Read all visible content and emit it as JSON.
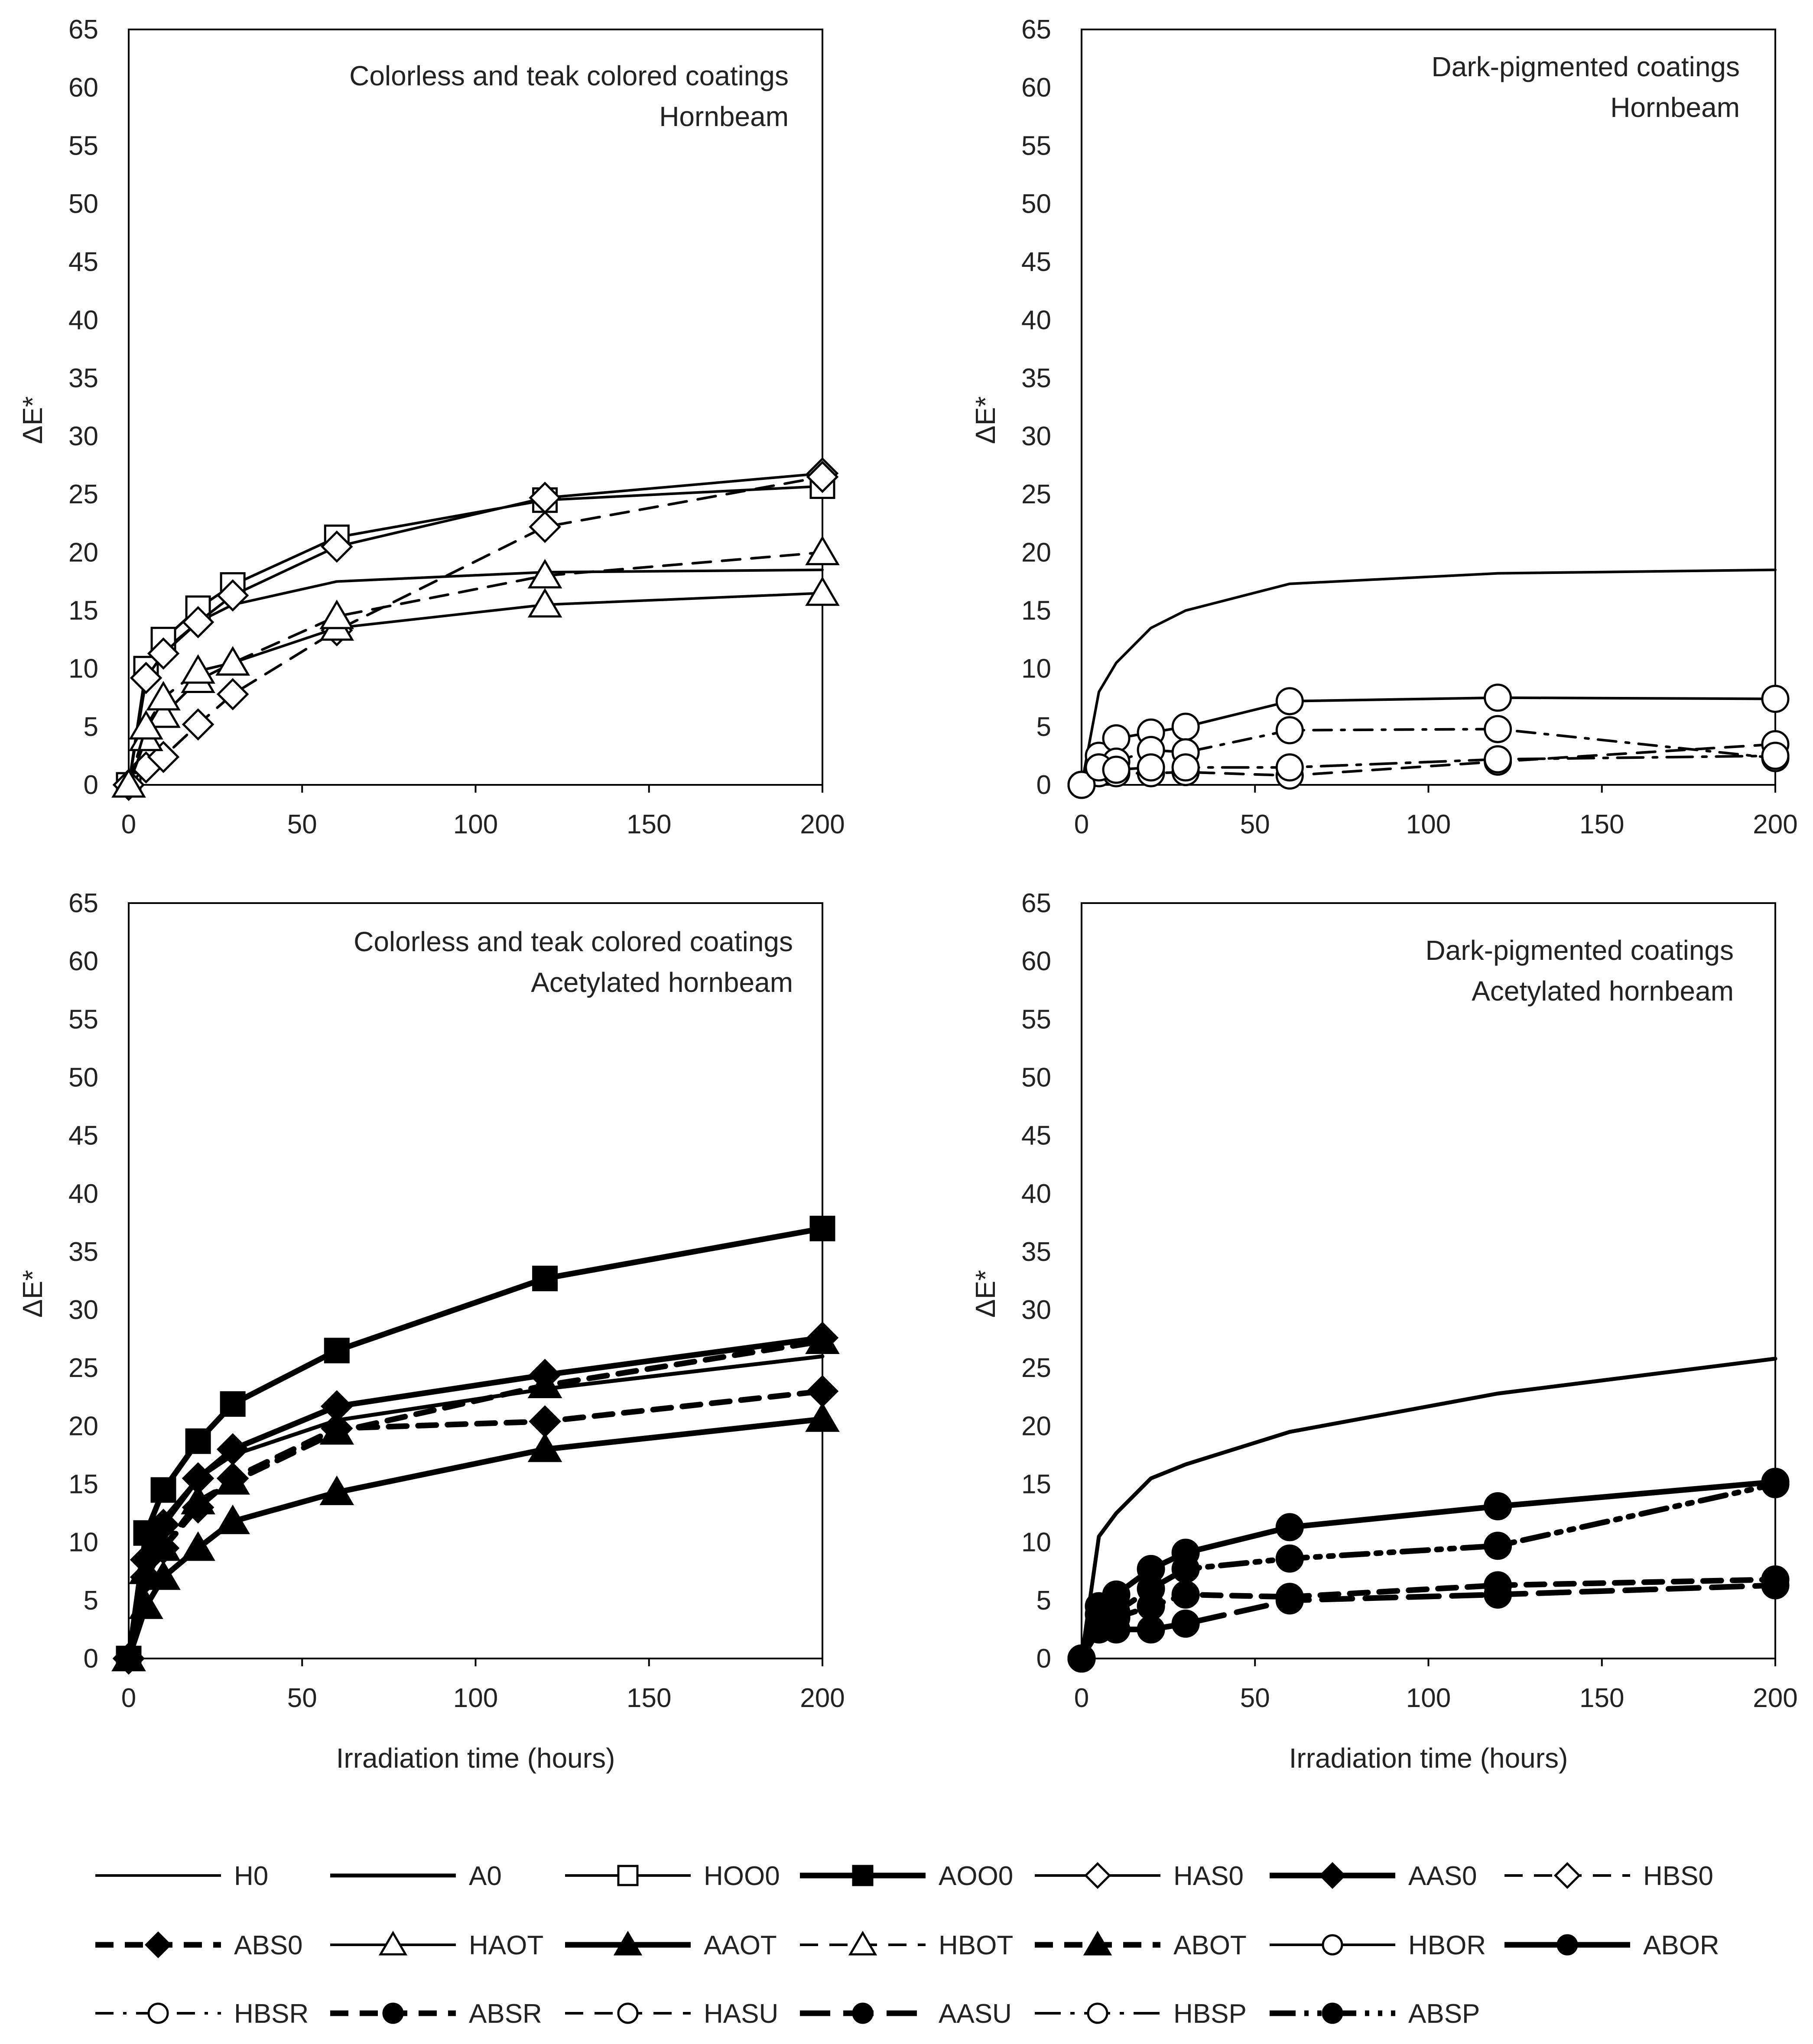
{
  "figure": {
    "legend": [
      {
        "label": "H0"
      },
      {
        "label": "A0"
      },
      {
        "label": "HOO0"
      },
      {
        "label": "AOO0"
      },
      {
        "label": "HAS0"
      },
      {
        "label": "AAS0"
      },
      {
        "label": "HBS0"
      },
      {
        "label": "ABS0"
      },
      {
        "label": "HAOT"
      },
      {
        "label": "AAOT"
      },
      {
        "label": "HBOT"
      },
      {
        "label": "ABOT"
      },
      {
        "label": "HBOR"
      },
      {
        "label": "ABOR"
      },
      {
        "label": "HBSR"
      },
      {
        "label": "ABSR"
      },
      {
        "label": "HASU"
      },
      {
        "label": "AASU"
      },
      {
        "label": "HBSP"
      },
      {
        "label": "ABSP"
      }
    ],
    "colors": {
      "line": "#000000",
      "open_fill": "#ffffff",
      "frame": "#000000"
    }
  },
  "chart_data": [
    {
      "type": "line",
      "title": "Colorless and teak colored coatings",
      "subtitle": "Hornbeam",
      "xlabel": "",
      "ylabel": "ΔE*",
      "xlim": [
        0,
        200
      ],
      "ylim": [
        0,
        65
      ],
      "xticks": [
        "0",
        "50",
        "100",
        "150",
        "200"
      ],
      "yticks": [
        "0",
        "5",
        "10",
        "15",
        "20",
        "25",
        "30",
        "35",
        "40",
        "45",
        "50",
        "55",
        "60",
        "65"
      ],
      "series": [
        {
          "name": "H0",
          "marker": "none",
          "dash": "solid",
          "width": "thin",
          "x": [
            0,
            5,
            10,
            20,
            30,
            60,
            120,
            200
          ],
          "y": [
            0,
            9,
            11.5,
            14,
            15.5,
            17.5,
            18.3,
            18.5
          ]
        },
        {
          "name": "HOO0",
          "marker": "square-open",
          "dash": "solid",
          "width": "thin",
          "x": [
            0,
            5,
            10,
            20,
            30,
            60,
            120,
            200
          ],
          "y": [
            0,
            10,
            12.5,
            15.2,
            17.2,
            21.3,
            24.5,
            25.7
          ]
        },
        {
          "name": "HAS0",
          "marker": "diamond-open",
          "dash": "solid",
          "width": "thin",
          "x": [
            0,
            5,
            10,
            20,
            30,
            60,
            120,
            200
          ],
          "y": [
            0,
            9.2,
            11.3,
            14,
            16.3,
            20.5,
            24.7,
            26.8
          ]
        },
        {
          "name": "HBS0",
          "marker": "diamond-open",
          "dash": "dashed",
          "width": "thin",
          "x": [
            0,
            5,
            10,
            20,
            30,
            60,
            120,
            200
          ],
          "y": [
            0,
            1.5,
            2.4,
            5.2,
            7.8,
            13.3,
            22.2,
            26.5
          ]
        },
        {
          "name": "HAOT",
          "marker": "triangle-open",
          "dash": "solid",
          "width": "thin",
          "x": [
            0,
            5,
            10,
            20,
            30,
            60,
            120,
            200
          ],
          "y": [
            0,
            4,
            6,
            9,
            10.5,
            13.5,
            15.5,
            16.5
          ]
        },
        {
          "name": "HBOT",
          "marker": "triangle-open",
          "dash": "dashed",
          "width": "thin",
          "x": [
            0,
            5,
            10,
            20,
            30,
            60,
            120,
            200
          ],
          "y": [
            0,
            5,
            7.5,
            9.8,
            10.5,
            14.5,
            18,
            20
          ]
        }
      ]
    },
    {
      "type": "line",
      "title": "Dark-pigmented coatings",
      "subtitle": "Hornbeam",
      "xlabel": "",
      "ylabel": "ΔE*",
      "xlim": [
        0,
        200
      ],
      "ylim": [
        0,
        65
      ],
      "xticks": [
        "0",
        "50",
        "100",
        "150",
        "200"
      ],
      "yticks": [
        "0",
        "5",
        "10",
        "15",
        "20",
        "25",
        "30",
        "35",
        "40",
        "45",
        "50",
        "55",
        "60",
        "65"
      ],
      "series": [
        {
          "name": "H0",
          "marker": "none",
          "dash": "solid",
          "width": "thin",
          "x": [
            0,
            5,
            10,
            20,
            30,
            60,
            120,
            200
          ],
          "y": [
            0,
            8,
            10.5,
            13.5,
            15,
            17.3,
            18.2,
            18.5
          ]
        },
        {
          "name": "HBOR",
          "marker": "circle-open",
          "dash": "solid",
          "width": "thin",
          "x": [
            0,
            5,
            10,
            20,
            30,
            60,
            120,
            200
          ],
          "y": [
            0,
            2.5,
            4,
            4.5,
            5,
            7.2,
            7.5,
            7.4
          ]
        },
        {
          "name": "HBSR",
          "marker": "circle-open",
          "dash": "dashdot",
          "width": "thin",
          "x": [
            0,
            5,
            10,
            20,
            30,
            60,
            120,
            200
          ],
          "y": [
            0,
            1.5,
            2,
            3,
            2.8,
            4.7,
            4.8,
            2.3
          ]
        },
        {
          "name": "HASU",
          "marker": "circle-open",
          "dash": "dashed",
          "width": "thin",
          "x": [
            0,
            5,
            10,
            20,
            30,
            60,
            120,
            200
          ],
          "y": [
            0,
            1,
            1,
            1,
            1.1,
            0.8,
            2,
            3.5
          ]
        },
        {
          "name": "HBSP",
          "marker": "circle-open",
          "dash": "longdash-dot",
          "width": "thin",
          "x": [
            0,
            5,
            10,
            20,
            30,
            60,
            120,
            200
          ],
          "y": [
            0,
            1.5,
            1.3,
            1.5,
            1.5,
            1.5,
            2.2,
            2.5
          ]
        }
      ]
    },
    {
      "type": "line",
      "title": "Colorless and teak colored coatings",
      "subtitle": "Acetylated hornbeam",
      "xlabel": "Irradiation time (hours)",
      "ylabel": "ΔE*",
      "xlim": [
        0,
        200
      ],
      "ylim": [
        0,
        65
      ],
      "xticks": [
        "0",
        "50",
        "100",
        "150",
        "200"
      ],
      "yticks": [
        "0",
        "5",
        "10",
        "15",
        "20",
        "25",
        "30",
        "35",
        "40",
        "45",
        "50",
        "55",
        "60",
        "65"
      ],
      "series": [
        {
          "name": "A0",
          "marker": "none",
          "dash": "solid",
          "width": "medium",
          "x": [
            0,
            5,
            10,
            20,
            30,
            60,
            120,
            200
          ],
          "y": [
            0,
            9,
            12,
            15.5,
            17.5,
            20.5,
            23.2,
            26
          ]
        },
        {
          "name": "AOO0",
          "marker": "square-filled",
          "dash": "solid",
          "width": "thick",
          "x": [
            0,
            5,
            10,
            20,
            30,
            60,
            120,
            200
          ],
          "y": [
            0,
            10.8,
            14.5,
            18.7,
            21.9,
            26.5,
            32.7,
            37
          ]
        },
        {
          "name": "AAS0",
          "marker": "diamond-filled",
          "dash": "solid",
          "width": "thick",
          "x": [
            0,
            5,
            10,
            20,
            30,
            60,
            120,
            200
          ],
          "y": [
            0,
            8.5,
            11.5,
            15.5,
            18,
            21.7,
            24.4,
            27.6
          ]
        },
        {
          "name": "ABS0",
          "marker": "diamond-filled",
          "dash": "dashed",
          "width": "thick",
          "x": [
            0,
            5,
            10,
            20,
            30,
            60,
            120,
            200
          ],
          "y": [
            0,
            7,
            9.5,
            13,
            15.5,
            19.8,
            20.4,
            23
          ]
        },
        {
          "name": "AAOT",
          "marker": "triangle-filled",
          "dash": "solid",
          "width": "thick",
          "x": [
            0,
            5,
            10,
            20,
            30,
            60,
            120,
            200
          ],
          "y": [
            0,
            4.5,
            7,
            9.5,
            11.8,
            14.3,
            18,
            20.6
          ]
        },
        {
          "name": "ABOT",
          "marker": "triangle-filled",
          "dash": "dashed",
          "width": "thick",
          "x": [
            0,
            5,
            10,
            20,
            30,
            60,
            120,
            200
          ],
          "y": [
            0,
            7.5,
            9.5,
            13.5,
            15.2,
            19.5,
            23.5,
            27.3
          ]
        }
      ]
    },
    {
      "type": "line",
      "title": "Dark-pigmented coatings",
      "subtitle": "Acetylated hornbeam",
      "xlabel": "Irradiation time (hours)",
      "ylabel": "ΔE*",
      "xlim": [
        0,
        200
      ],
      "ylim": [
        0,
        65
      ],
      "xticks": [
        "0",
        "50",
        "100",
        "150",
        "200"
      ],
      "yticks": [
        "0",
        "5",
        "10",
        "15",
        "20",
        "25",
        "30",
        "35",
        "40",
        "45",
        "50",
        "55",
        "60",
        "65"
      ],
      "series": [
        {
          "name": "A0",
          "marker": "none",
          "dash": "solid",
          "width": "medium",
          "x": [
            0,
            5,
            10,
            20,
            30,
            60,
            120,
            200
          ],
          "y": [
            0,
            10.5,
            12.5,
            15.5,
            16.7,
            19.5,
            22.8,
            25.8
          ]
        },
        {
          "name": "ABOR",
          "marker": "circle-filled",
          "dash": "solid",
          "width": "thick",
          "x": [
            0,
            5,
            10,
            20,
            30,
            60,
            120,
            200
          ],
          "y": [
            0,
            4.5,
            5.5,
            7.7,
            9.1,
            11.3,
            13.1,
            15.2
          ]
        },
        {
          "name": "ABSR",
          "marker": "circle-filled",
          "dash": "dashed",
          "width": "thick",
          "x": [
            0,
            5,
            10,
            20,
            30,
            60,
            120,
            200
          ],
          "y": [
            0,
            3,
            3.5,
            4.5,
            5.5,
            5.3,
            6.3,
            6.8
          ]
        },
        {
          "name": "AASU",
          "marker": "circle-filled",
          "dash": "longdash",
          "width": "thick",
          "x": [
            0,
            5,
            10,
            20,
            30,
            60,
            120,
            200
          ],
          "y": [
            0,
            2.5,
            2.5,
            2.5,
            3,
            5,
            5.5,
            6.3
          ]
        },
        {
          "name": "ABSP",
          "marker": "circle-filled",
          "dash": "longdash-dotdot",
          "width": "thick",
          "x": [
            0,
            5,
            10,
            20,
            30,
            60,
            120,
            200
          ],
          "y": [
            0,
            3.8,
            4,
            6,
            7.7,
            8.6,
            9.7,
            15
          ]
        }
      ]
    }
  ]
}
